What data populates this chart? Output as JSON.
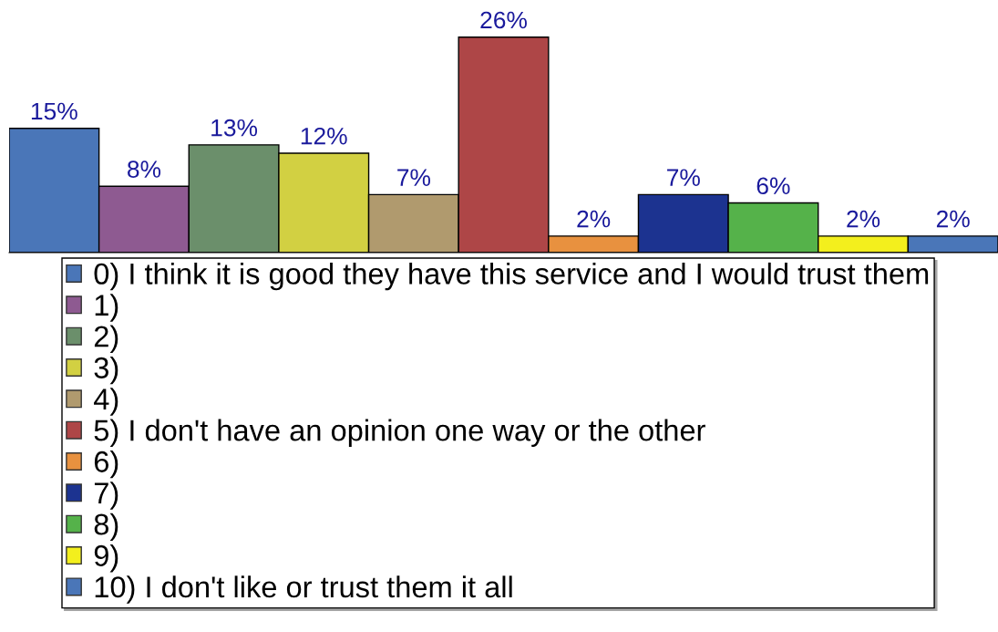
{
  "chart_data": {
    "type": "bar",
    "categories": [
      null,
      null,
      null,
      null,
      null,
      null,
      null,
      null,
      null,
      null,
      null
    ],
    "series": [
      {
        "name": "0) I think it is good they have this service and I would trust them",
        "color": "#4a76b8",
        "values": [
          15,
          null,
          null,
          null,
          null,
          null,
          null,
          null,
          null,
          null,
          null
        ],
        "value_labels": [
          "15%",
          null,
          null,
          null,
          null,
          null,
          null,
          null,
          null,
          null,
          null
        ]
      },
      {
        "name": "1)",
        "color": "#8e5a91",
        "values": [
          null,
          8,
          null,
          null,
          null,
          null,
          null,
          null,
          null,
          null,
          null
        ],
        "value_labels": [
          null,
          "8%",
          null,
          null,
          null,
          null,
          null,
          null,
          null,
          null,
          null
        ]
      },
      {
        "name": "2)",
        "color": "#6b8f6b",
        "values": [
          null,
          null,
          13,
          null,
          null,
          null,
          null,
          null,
          null,
          null,
          null
        ],
        "value_labels": [
          null,
          null,
          "13%",
          null,
          null,
          null,
          null,
          null,
          null,
          null,
          null
        ]
      },
      {
        "name": "3)",
        "color": "#d2d042",
        "values": [
          null,
          null,
          null,
          12,
          null,
          null,
          null,
          null,
          null,
          null,
          null
        ],
        "value_labels": [
          null,
          null,
          null,
          "12%",
          null,
          null,
          null,
          null,
          null,
          null,
          null
        ]
      },
      {
        "name": "4)",
        "color": "#b09a6e",
        "values": [
          null,
          null,
          null,
          null,
          7,
          null,
          null,
          null,
          null,
          null,
          null
        ],
        "value_labels": [
          null,
          null,
          null,
          null,
          "7%",
          null,
          null,
          null,
          null,
          null,
          null
        ]
      },
      {
        "name": "5) I don't have an opinion one way or the other",
        "color": "#ae4647",
        "values": [
          null,
          null,
          null,
          null,
          null,
          26,
          null,
          null,
          null,
          null,
          null
        ],
        "value_labels": [
          null,
          null,
          null,
          null,
          null,
          "26%",
          null,
          null,
          null,
          null,
          null
        ]
      },
      {
        "name": "6)",
        "color": "#e8913f",
        "values": [
          null,
          null,
          null,
          null,
          null,
          null,
          2,
          null,
          null,
          null,
          null
        ],
        "value_labels": [
          null,
          null,
          null,
          null,
          null,
          null,
          "2%",
          null,
          null,
          null,
          null
        ]
      },
      {
        "name": "7)",
        "color": "#1c3390",
        "values": [
          null,
          null,
          null,
          null,
          null,
          null,
          null,
          7,
          null,
          null,
          null
        ],
        "value_labels": [
          null,
          null,
          null,
          null,
          null,
          null,
          null,
          "7%",
          null,
          null,
          null
        ]
      },
      {
        "name": "8)",
        "color": "#55b24a",
        "values": [
          null,
          null,
          null,
          null,
          null,
          null,
          null,
          null,
          6,
          null,
          null
        ],
        "value_labels": [
          null,
          null,
          null,
          null,
          null,
          null,
          null,
          null,
          "6%",
          null,
          null
        ]
      },
      {
        "name": "9)",
        "color": "#f3ef1d",
        "values": [
          null,
          null,
          null,
          null,
          null,
          null,
          null,
          null,
          null,
          2,
          null
        ],
        "value_labels": [
          null,
          null,
          null,
          null,
          null,
          null,
          null,
          null,
          null,
          "2%",
          null
        ]
      },
      {
        "name": "10) I don't like or trust them it all",
        "color": "#4a76b8",
        "values": [
          null,
          null,
          null,
          null,
          null,
          null,
          null,
          null,
          null,
          null,
          2
        ],
        "value_labels": [
          null,
          null,
          null,
          null,
          null,
          null,
          null,
          null,
          null,
          null,
          "2%"
        ]
      }
    ],
    "stacked": true,
    "legend": "bottom"
  }
}
